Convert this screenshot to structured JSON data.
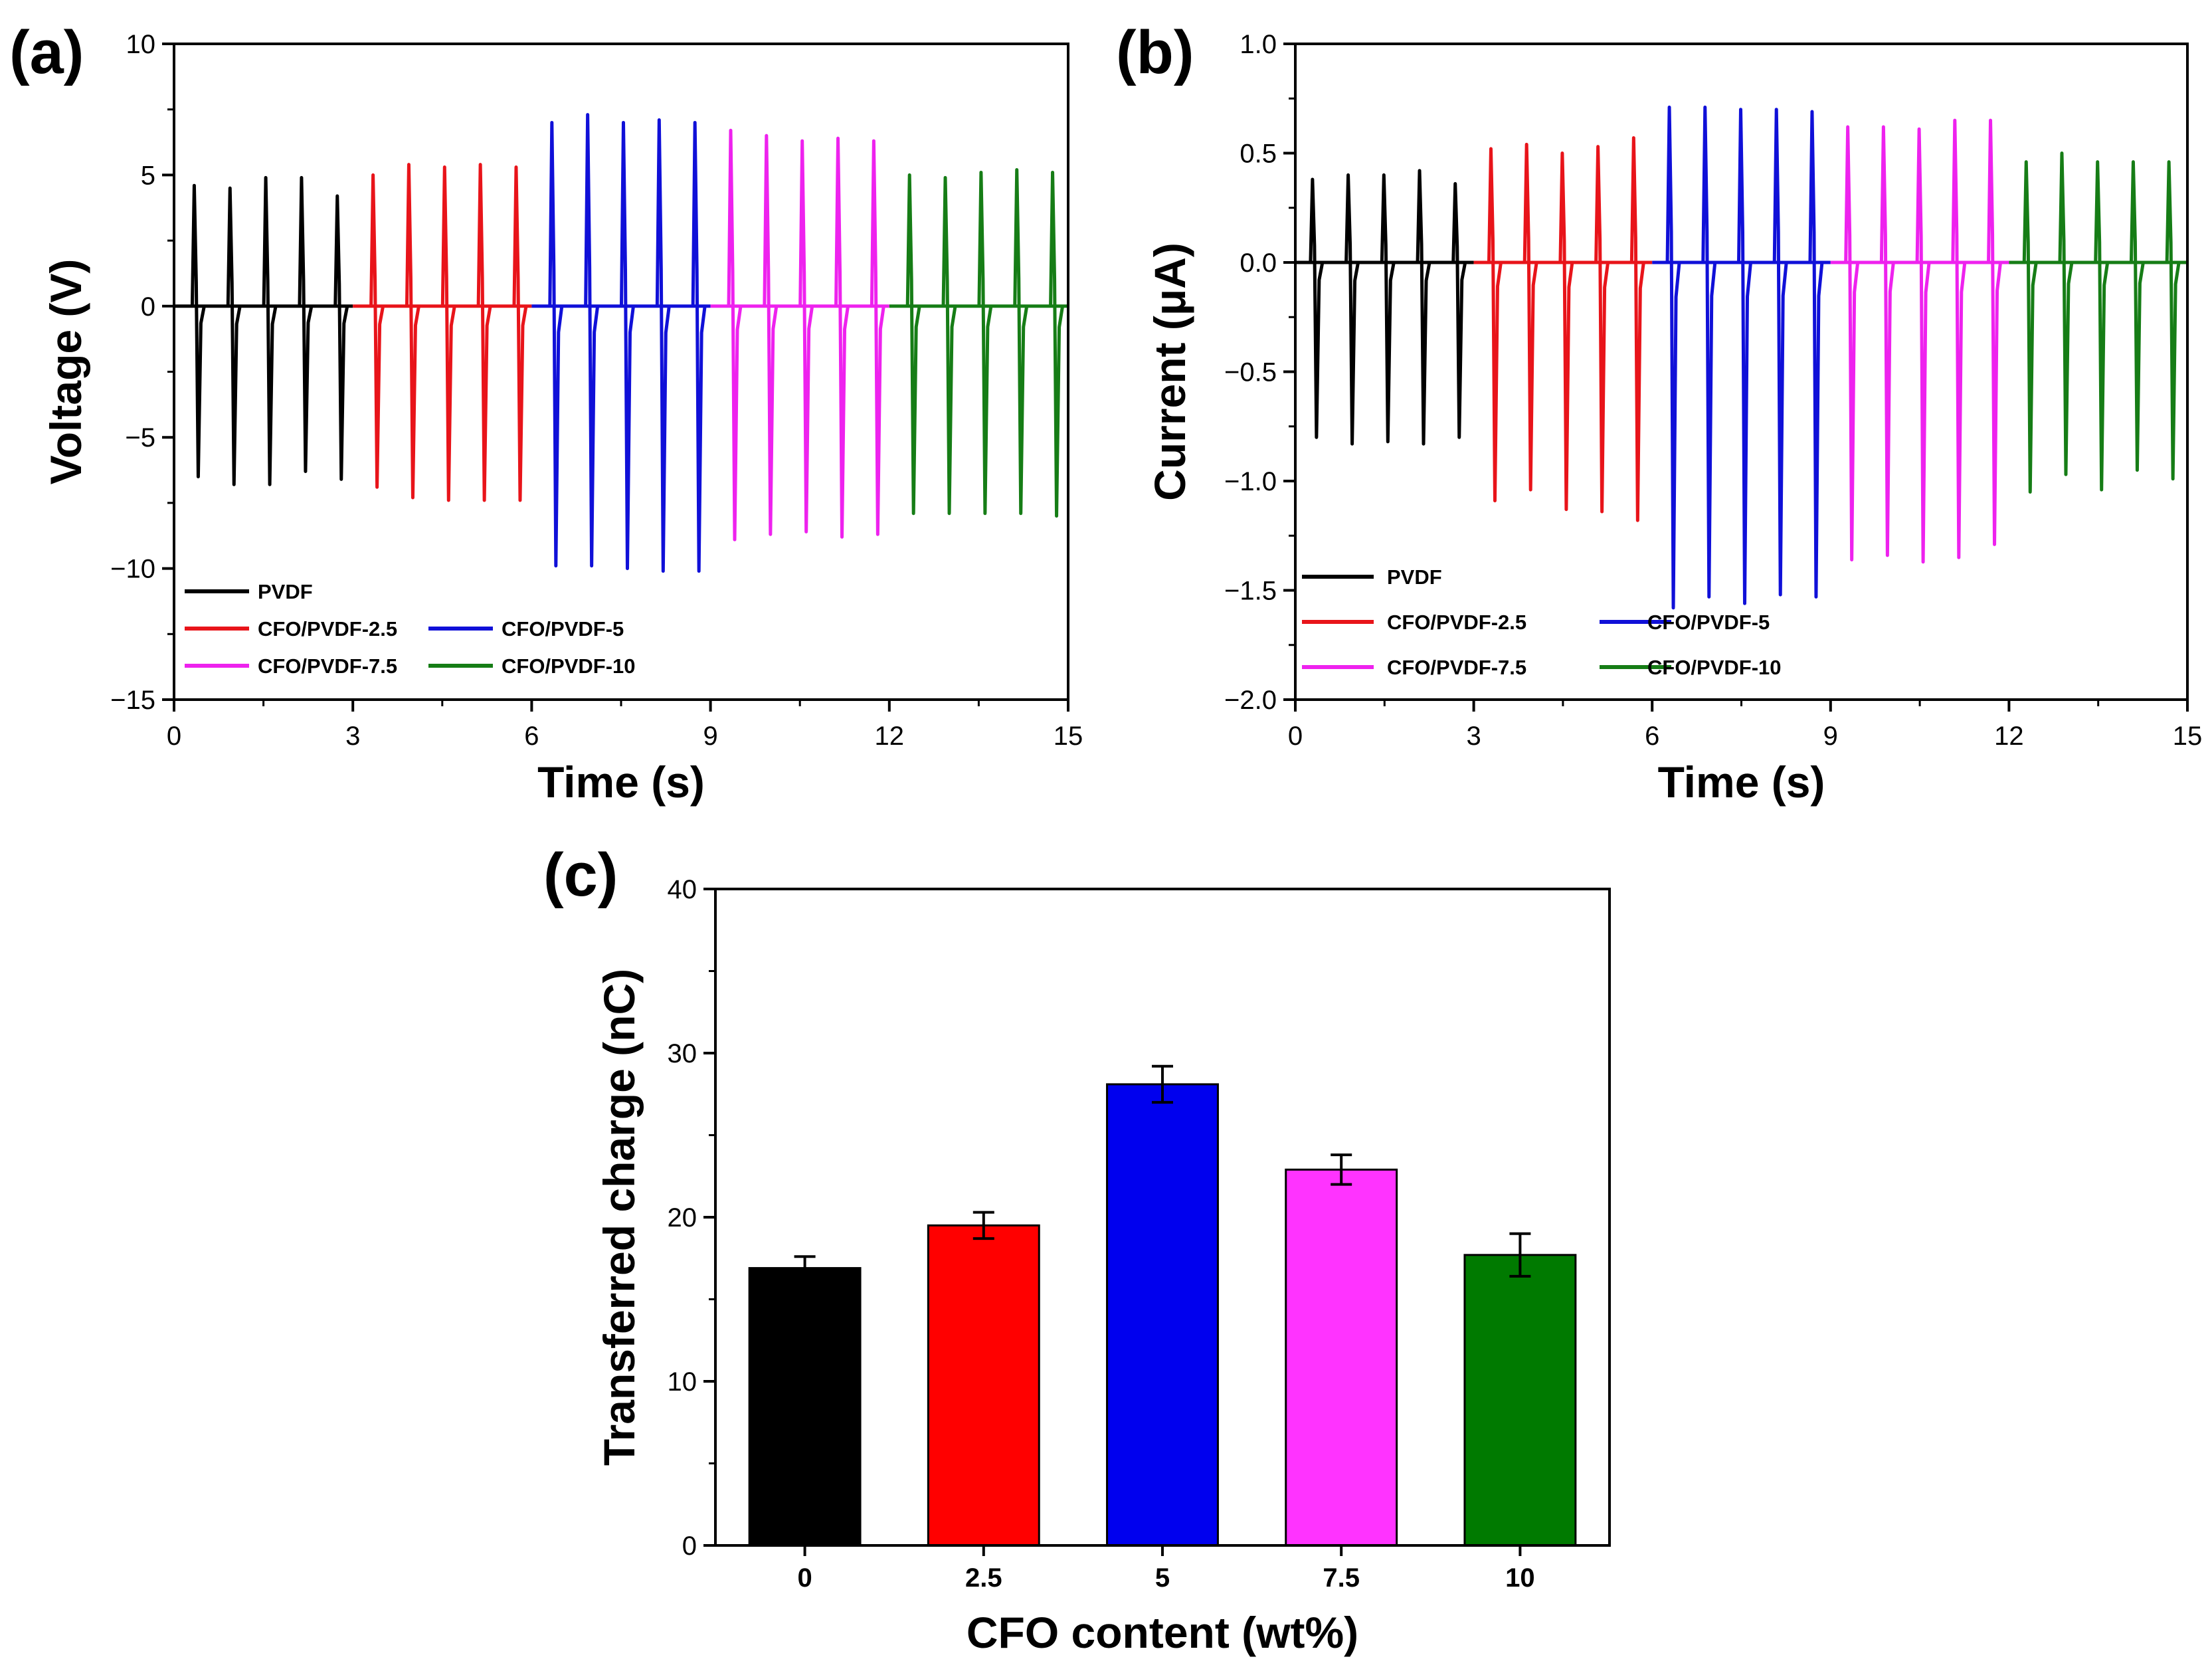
{
  "chart_data": [
    {
      "id": "a",
      "type": "line",
      "panel_label": "(a)",
      "xlabel": "Time (s)",
      "ylabel": "Voltage (V)",
      "xlim": [
        0,
        15
      ],
      "ylim": [
        -15,
        10
      ],
      "xticks": [
        0,
        3,
        6,
        9,
        12,
        15
      ],
      "yticks": [
        -15,
        -10,
        -5,
        0,
        5,
        10
      ],
      "x_tick_labels": [
        "0",
        "3",
        "6",
        "9",
        "12",
        "15"
      ],
      "y_tick_labels": [
        "−15",
        "−10",
        "−5",
        "0",
        "5",
        "10"
      ],
      "series": [
        {
          "name": "PVDF",
          "color": "#000000",
          "x_range": [
            0,
            3
          ],
          "peak_times": [
            0.35,
            0.95,
            1.55,
            2.15,
            2.75
          ],
          "pos_peaks": [
            4.6,
            4.5,
            4.9,
            4.9,
            4.2
          ],
          "neg_peaks": [
            -6.5,
            -6.8,
            -6.8,
            -6.3,
            -6.6
          ]
        },
        {
          "name": "CFO/PVDF-2.5",
          "color": "#e8141a",
          "x_range": [
            3,
            6
          ],
          "peak_times": [
            3.35,
            3.95,
            4.55,
            5.15,
            5.75
          ],
          "pos_peaks": [
            5.0,
            5.4,
            5.3,
            5.4,
            5.3
          ],
          "neg_peaks": [
            -6.9,
            -7.3,
            -7.4,
            -7.4,
            -7.4
          ]
        },
        {
          "name": "CFO/PVDF-5",
          "color": "#1010d8",
          "x_range": [
            6,
            9
          ],
          "peak_times": [
            6.35,
            6.95,
            7.55,
            8.15,
            8.75
          ],
          "pos_peaks": [
            7.0,
            7.3,
            7.0,
            7.1,
            7.0
          ],
          "neg_peaks": [
            -9.9,
            -9.9,
            -10.0,
            -10.1,
            -10.1
          ]
        },
        {
          "name": "CFO/PVDF-7.5",
          "color": "#ee22ee",
          "x_range": [
            9,
            12
          ],
          "peak_times": [
            9.35,
            9.95,
            10.55,
            11.15,
            11.75
          ],
          "pos_peaks": [
            6.7,
            6.5,
            6.3,
            6.4,
            6.3
          ],
          "neg_peaks": [
            -8.9,
            -8.7,
            -8.6,
            -8.8,
            -8.7
          ]
        },
        {
          "name": "CFO/PVDF-10",
          "color": "#167d16",
          "x_range": [
            12,
            15
          ],
          "peak_times": [
            12.35,
            12.95,
            13.55,
            14.15,
            14.75
          ],
          "pos_peaks": [
            5.0,
            4.9,
            5.1,
            5.2,
            5.1
          ],
          "neg_peaks": [
            -7.9,
            -7.9,
            -7.9,
            -7.9,
            -8.0
          ]
        }
      ]
    },
    {
      "id": "b",
      "type": "line",
      "panel_label": "(b)",
      "xlabel": "Time (s)",
      "ylabel": "Current (μA)",
      "xlim": [
        0,
        15
      ],
      "ylim": [
        -2.0,
        1.0
      ],
      "xticks": [
        0,
        3,
        6,
        9,
        12,
        15
      ],
      "yticks": [
        -2.0,
        -1.5,
        -1.0,
        -0.5,
        0.0,
        0.5,
        1.0
      ],
      "x_tick_labels": [
        "0",
        "3",
        "6",
        "9",
        "12",
        "15"
      ],
      "y_tick_labels": [
        "−2.0",
        "−1.5",
        "−1.0",
        "−0.5",
        "0.0",
        "0.5",
        "1.0"
      ],
      "series": [
        {
          "name": "PVDF",
          "color": "#000000",
          "x_range": [
            0,
            3
          ],
          "peak_times": [
            0.3,
            0.9,
            1.5,
            2.1,
            2.7
          ],
          "pos_peaks": [
            0.38,
            0.4,
            0.4,
            0.42,
            0.36
          ],
          "neg_peaks": [
            -0.8,
            -0.83,
            -0.82,
            -0.83,
            -0.8
          ]
        },
        {
          "name": "CFO/PVDF-2.5",
          "color": "#e8141a",
          "x_range": [
            3,
            6
          ],
          "peak_times": [
            3.3,
            3.9,
            4.5,
            5.1,
            5.7
          ],
          "pos_peaks": [
            0.52,
            0.54,
            0.5,
            0.53,
            0.57
          ],
          "neg_peaks": [
            -1.09,
            -1.04,
            -1.13,
            -1.14,
            -1.18
          ]
        },
        {
          "name": "CFO/PVDF-5",
          "color": "#1010d8",
          "x_range": [
            6,
            9
          ],
          "peak_times": [
            6.3,
            6.9,
            7.5,
            8.1,
            8.7
          ],
          "pos_peaks": [
            0.71,
            0.71,
            0.7,
            0.7,
            0.69
          ],
          "neg_peaks": [
            -1.58,
            -1.53,
            -1.56,
            -1.52,
            -1.53
          ]
        },
        {
          "name": "CFO/PVDF-7.5",
          "color": "#ee22ee",
          "x_range": [
            9,
            12
          ],
          "peak_times": [
            9.3,
            9.9,
            10.5,
            11.1,
            11.7
          ],
          "pos_peaks": [
            0.62,
            0.62,
            0.61,
            0.65,
            0.65
          ],
          "neg_peaks": [
            -1.36,
            -1.34,
            -1.37,
            -1.35,
            -1.29
          ]
        },
        {
          "name": "CFO/PVDF-10",
          "color": "#167d16",
          "x_range": [
            12,
            15
          ],
          "peak_times": [
            12.3,
            12.9,
            13.5,
            14.1,
            14.7
          ],
          "pos_peaks": [
            0.46,
            0.5,
            0.46,
            0.46,
            0.46
          ],
          "neg_peaks": [
            -1.05,
            -0.97,
            -1.04,
            -0.95,
            -0.99
          ]
        }
      ]
    },
    {
      "id": "c",
      "type": "bar",
      "panel_label": "(c)",
      "xlabel": "CFO content (wt%)",
      "ylabel": "Transferred charge (nC)",
      "categories": [
        "0",
        "2.5",
        "5",
        "7.5",
        "10"
      ],
      "values": [
        16.9,
        19.5,
        28.1,
        22.9,
        17.7
      ],
      "errors": [
        0.7,
        0.8,
        1.1,
        0.9,
        1.3
      ],
      "colors": [
        "#000000",
        "#ff0000",
        "#0000ee",
        "#ff33ff",
        "#007a00"
      ],
      "ylim": [
        0,
        40
      ],
      "yticks": [
        0,
        10,
        20,
        30,
        40
      ],
      "y_tick_labels": [
        "0",
        "10",
        "20",
        "30",
        "40"
      ]
    }
  ]
}
